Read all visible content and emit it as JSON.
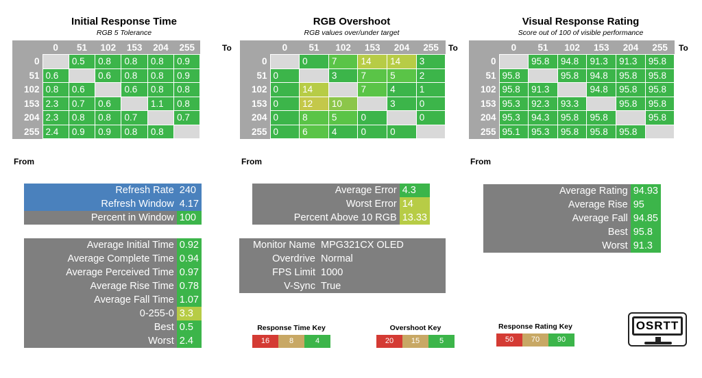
{
  "colors": {
    "green": "#3cb54a",
    "lightgreen": "#5ac447",
    "yellow": "#b7cc46",
    "olive": "#c4c84a",
    "grey": "#7f7f7f",
    "blue": "#4a81bd",
    "headergrey": "#a6a6a6",
    "diag": "#d9d9d9",
    "red": "#d43b34",
    "tan": "#c8a865"
  },
  "col_headers": [
    "0",
    "51",
    "102",
    "153",
    "204",
    "255"
  ],
  "to_label": "To",
  "from_label": "From",
  "panels": [
    {
      "title": "Initial Response Time",
      "subtitle": "RGB 5 Tolerance",
      "rows": [
        [
          "",
          "0.5",
          "0.8",
          "0.8",
          "0.8",
          "0.9"
        ],
        [
          "0.6",
          "",
          "0.6",
          "0.8",
          "0.8",
          "0.9"
        ],
        [
          "0.8",
          "0.6",
          "",
          "0.6",
          "0.8",
          "0.8"
        ],
        [
          "2.3",
          "0.7",
          "0.6",
          "",
          "1.1",
          "0.8"
        ],
        [
          "2.3",
          "0.8",
          "0.8",
          "0.7",
          "",
          "0.7"
        ],
        [
          "2.4",
          "0.9",
          "0.9",
          "0.8",
          "0.8",
          ""
        ]
      ],
      "cell_colors": [
        [
          "",
          "g",
          "g",
          "g",
          "g",
          "g"
        ],
        [
          "g",
          "",
          "g",
          "g",
          "g",
          "g"
        ],
        [
          "g",
          "g",
          "",
          "g",
          "g",
          "g"
        ],
        [
          "g",
          "g",
          "g",
          "",
          "g",
          "g"
        ],
        [
          "g",
          "g",
          "g",
          "g",
          "",
          "g"
        ],
        [
          "g",
          "g",
          "g",
          "g",
          "g",
          ""
        ]
      ]
    },
    {
      "title": "RGB Overshoot",
      "subtitle": "RGB values over/under target",
      "rows": [
        [
          "",
          "0",
          "7",
          "14",
          "14",
          "3"
        ],
        [
          "0",
          "",
          "3",
          "7",
          "5",
          "2"
        ],
        [
          "0",
          "14",
          "",
          "7",
          "4",
          "1"
        ],
        [
          "0",
          "12",
          "10",
          "",
          "3",
          "0"
        ],
        [
          "0",
          "8",
          "5",
          "0",
          "",
          "0"
        ],
        [
          "0",
          "6",
          "4",
          "0",
          "0",
          ""
        ]
      ],
      "cell_colors": [
        [
          "",
          "g",
          "lg",
          "y",
          "y",
          "g"
        ],
        [
          "g",
          "",
          "g",
          "lg",
          "lg",
          "g"
        ],
        [
          "g",
          "y",
          "",
          "lg",
          "g",
          "g"
        ],
        [
          "g",
          "o",
          "yg",
          "",
          "g",
          "g"
        ],
        [
          "g",
          "lg",
          "lg",
          "g",
          "",
          "g"
        ],
        [
          "g",
          "lg",
          "g",
          "g",
          "g",
          ""
        ]
      ]
    },
    {
      "title": "Visual Response Rating",
      "subtitle": "Score out of 100 of visible performance",
      "rows": [
        [
          "",
          "95.8",
          "94.8",
          "91.3",
          "91.3",
          "95.8"
        ],
        [
          "95.8",
          "",
          "95.8",
          "94.8",
          "95.8",
          "95.8"
        ],
        [
          "95.8",
          "91.3",
          "",
          "94.8",
          "95.8",
          "95.8"
        ],
        [
          "95.3",
          "92.3",
          "93.3",
          "",
          "95.8",
          "95.8"
        ],
        [
          "95.3",
          "94.3",
          "95.8",
          "95.8",
          "",
          "95.8"
        ],
        [
          "95.1",
          "95.3",
          "95.8",
          "95.8",
          "95.8",
          ""
        ]
      ],
      "cell_colors": [
        [
          "",
          "g",
          "g",
          "g",
          "g",
          "g"
        ],
        [
          "g",
          "",
          "g",
          "g",
          "g",
          "g"
        ],
        [
          "g",
          "g",
          "",
          "g",
          "g",
          "g"
        ],
        [
          "g",
          "g",
          "g",
          "",
          "g",
          "g"
        ],
        [
          "g",
          "g",
          "g",
          "g",
          "",
          "g"
        ],
        [
          "g",
          "g",
          "g",
          "g",
          "g",
          ""
        ]
      ]
    }
  ],
  "refresh_block": [
    {
      "label": "Refresh Rate",
      "value": "240",
      "label_bg": "blue",
      "value_bg": "blue"
    },
    {
      "label": "Refresh Window",
      "value": "4.17",
      "label_bg": "blue",
      "value_bg": "blue"
    },
    {
      "label": "Percent in Window",
      "value": "100",
      "label_bg": "grey",
      "value_bg": "green"
    }
  ],
  "response_stats": [
    {
      "label": "Average Initial Time",
      "value": "0.92",
      "value_bg": "green"
    },
    {
      "label": "Average Complete Time",
      "value": "0.94",
      "value_bg": "green"
    },
    {
      "label": "Average Perceived Time",
      "value": "0.97",
      "value_bg": "green"
    },
    {
      "label": "Average Rise Time",
      "value": "0.78",
      "value_bg": "green"
    },
    {
      "label": "Average Fall Time",
      "value": "1.07",
      "value_bg": "green"
    },
    {
      "label": "0-255-0",
      "value": "3.3",
      "value_bg": "yellow"
    },
    {
      "label": "Best",
      "value": "0.5",
      "value_bg": "green"
    },
    {
      "label": "Worst",
      "value": "2.4",
      "value_bg": "green"
    }
  ],
  "overshoot_stats": [
    {
      "label": "Average Error",
      "value": "4.3",
      "value_bg": "green"
    },
    {
      "label": "Worst Error",
      "value": "14",
      "value_bg": "yellow"
    },
    {
      "label": "Percent Above 10 RGB",
      "value": "13.33",
      "value_bg": "yellow"
    }
  ],
  "monitor_info": [
    {
      "label": "Monitor Name",
      "value": "MPG321CX OLED"
    },
    {
      "label": "Overdrive",
      "value": "Normal"
    },
    {
      "label": "FPS Limit",
      "value": "1000"
    },
    {
      "label": "V-Sync",
      "value": "True"
    }
  ],
  "rating_stats": [
    {
      "label": "Average Rating",
      "value": "94.93"
    },
    {
      "label": "Average Rise",
      "value": "95"
    },
    {
      "label": "Average Fall",
      "value": "94.85"
    },
    {
      "label": "Best",
      "value": "95.8"
    },
    {
      "label": "Worst",
      "value": "91.3"
    }
  ],
  "keys": [
    {
      "title": "Response Time Key",
      "values": [
        "16",
        "8",
        "4"
      ],
      "colors": [
        "red",
        "tan",
        "green"
      ]
    },
    {
      "title": "Overshoot Key",
      "values": [
        "20",
        "15",
        "5"
      ],
      "colors": [
        "red",
        "tan",
        "green"
      ]
    },
    {
      "title": "Response Rating Key",
      "values": [
        "50",
        "70",
        "90"
      ],
      "colors": [
        "red",
        "tan",
        "green"
      ]
    }
  ],
  "logo_text": "OSRTT"
}
